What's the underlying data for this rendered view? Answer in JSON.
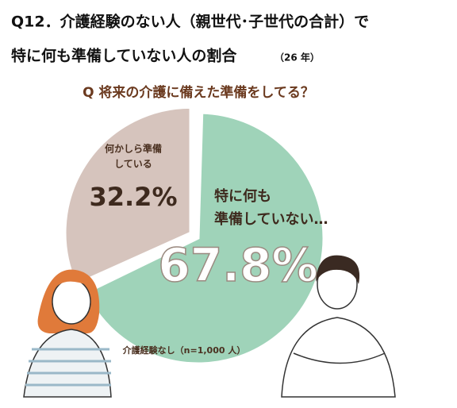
{
  "chart_data": {
    "type": "pie",
    "title": [
      "Q12．介護経験のない人（親世代･子世代の合計）で",
      "特に何も準備していない人の割合"
    ],
    "title_note": "（26 年）",
    "subtitle": "Q 将来の介護に備えた準備をしてる？",
    "categories": [
      [
        "特に何も",
        "準備していない…"
      ],
      [
        "何かしら準備",
        "している"
      ]
    ],
    "values": [
      67.8,
      32.2
    ],
    "value_labels": [
      "67.8%",
      "32.2%"
    ],
    "colors": [
      "#9fd3b9",
      "#d6c4bd"
    ],
    "note": "介護経験なし（n=1,000 人）"
  }
}
